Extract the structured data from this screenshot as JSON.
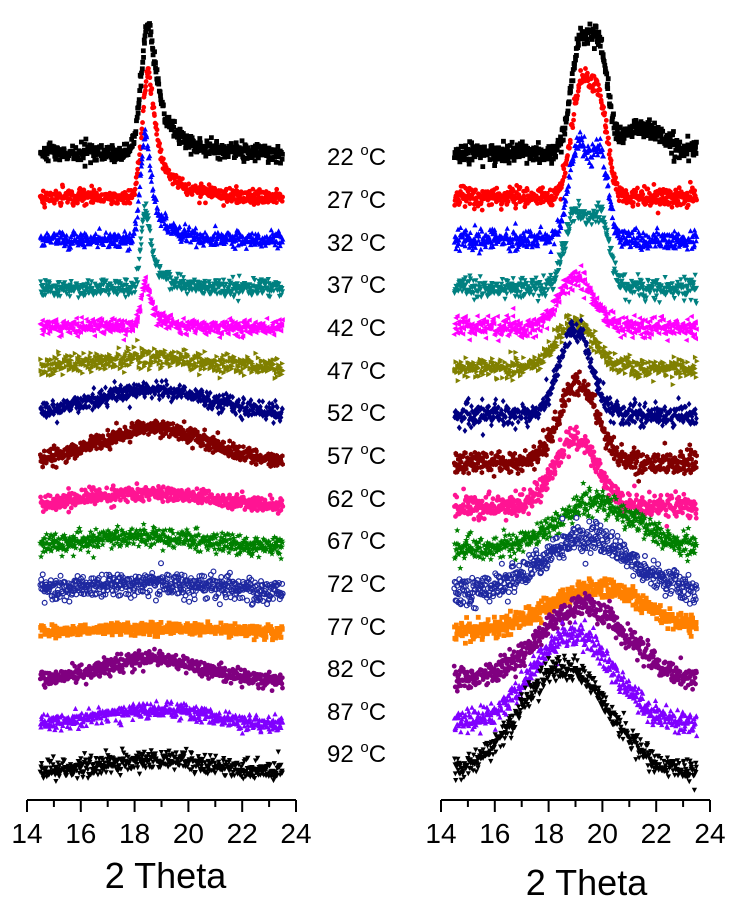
{
  "chart_data": [
    {
      "type": "scatter",
      "panel": "left",
      "xlabel": "2 Theta",
      "xlim": [
        14,
        24
      ],
      "xticks": [
        "14",
        "16",
        "18",
        "20",
        "22",
        "24"
      ],
      "temperatures": [
        "22",
        "27",
        "32",
        "37",
        "42",
        "47",
        "52",
        "57",
        "62",
        "67",
        "72",
        "77",
        "82",
        "87",
        "92"
      ],
      "temp_unit": "°C",
      "series": [
        {
          "name": "22 °C",
          "color": "#000000",
          "marker": "square",
          "x_range": [
            14.5,
            23.5
          ],
          "baseline_y": 153,
          "noise": 4,
          "peaks": [
            {
              "center": 18.5,
              "height": 130,
              "width": 0.7,
              "shape": "sharp_tail"
            }
          ]
        },
        {
          "name": "27 °C",
          "color": "#ff0000",
          "marker": "circle",
          "x_range": [
            14.5,
            23.5
          ],
          "baseline_y": 197,
          "noise": 4,
          "peaks": [
            {
              "center": 18.5,
              "height": 125,
              "width": 0.6,
              "shape": "sharp_tail"
            }
          ]
        },
        {
          "name": "32 °C",
          "color": "#0000ff",
          "marker": "triangle",
          "x_range": [
            14.5,
            23.5
          ],
          "baseline_y": 240,
          "noise": 4,
          "peaks": [
            {
              "center": 18.4,
              "height": 105,
              "width": 0.5,
              "shape": "sharp_tail"
            }
          ]
        },
        {
          "name": "37 °C",
          "color": "#008080",
          "marker": "triangle-down",
          "x_range": [
            14.5,
            23.5
          ],
          "baseline_y": 288,
          "noise": 4,
          "peaks": [
            {
              "center": 18.4,
              "height": 80,
              "width": 0.45,
              "shape": "sharp_tail"
            }
          ]
        },
        {
          "name": "42 °C",
          "color": "#ff00ff",
          "marker": "triangle-left",
          "x_range": [
            14.5,
            23.5
          ],
          "baseline_y": 327,
          "noise": 4,
          "peaks": [
            {
              "center": 18.4,
              "height": 45,
              "width": 0.45,
              "shape": "sharp_tail"
            }
          ]
        },
        {
          "name": "47 °C",
          "color": "#808000",
          "marker": "triangle-right",
          "x_range": [
            14.5,
            23.5
          ],
          "baseline_y": 368,
          "noise": 5,
          "peaks": [
            {
              "center": 18.5,
              "height": 10,
              "width": 2.0,
              "shape": "broad"
            }
          ]
        },
        {
          "name": "52 °C",
          "color": "#000080",
          "marker": "diamond",
          "x_range": [
            14.5,
            23.5
          ],
          "baseline_y": 415,
          "noise": 4,
          "peaks": [
            {
              "center": 18.6,
              "height": 25,
              "width": 2.2,
              "shape": "broad"
            }
          ]
        },
        {
          "name": "57 °C",
          "color": "#800000",
          "marker": "hexagon",
          "x_range": [
            14.5,
            23.5
          ],
          "baseline_y": 463,
          "noise": 4,
          "peaks": [
            {
              "center": 18.7,
              "height": 35,
              "width": 2.0,
              "shape": "broad"
            }
          ]
        },
        {
          "name": "62 °C",
          "color": "#ff1493",
          "marker": "circle",
          "x_range": [
            14.5,
            23.5
          ],
          "baseline_y": 508,
          "noise": 4,
          "peaks": [
            {
              "center": 18.6,
              "height": 15,
              "width": 2.5,
              "shape": "broad"
            }
          ]
        },
        {
          "name": "67 °C",
          "color": "#008000",
          "marker": "star",
          "x_range": [
            14.5,
            23.5
          ],
          "baseline_y": 549,
          "noise": 5,
          "peaks": [
            {
              "center": 18.5,
              "height": 12,
              "width": 2.5,
              "shape": "broad"
            }
          ]
        },
        {
          "name": "72 °C",
          "color": "#1e28a0",
          "marker": "circle-open",
          "x_range": [
            14.5,
            23.5
          ],
          "baseline_y": 592,
          "noise": 6,
          "peaks": [
            {
              "center": 18.5,
              "height": 8,
              "width": 2.5,
              "shape": "broad"
            }
          ]
        },
        {
          "name": "77 °C",
          "color": "#ff8000",
          "marker": "square",
          "x_range": [
            14.5,
            23.5
          ],
          "baseline_y": 633,
          "noise": 3,
          "peaks": [
            {
              "center": 18.7,
              "height": 5,
              "width": 2.5,
              "shape": "broad"
            }
          ]
        },
        {
          "name": "82 °C",
          "color": "#800080",
          "marker": "circle",
          "x_range": [
            14.5,
            23.5
          ],
          "baseline_y": 681,
          "noise": 4,
          "peaks": [
            {
              "center": 18.6,
              "height": 22,
              "width": 1.8,
              "shape": "broad"
            }
          ]
        },
        {
          "name": "87 °C",
          "color": "#8000ff",
          "marker": "triangle",
          "x_range": [
            14.5,
            23.5
          ],
          "baseline_y": 725,
          "noise": 4,
          "peaks": [
            {
              "center": 18.7,
              "height": 15,
              "width": 2.0,
              "shape": "broad"
            }
          ]
        },
        {
          "name": "92 °C",
          "color": "#000000",
          "marker": "triangle-down",
          "x_range": [
            14.5,
            23.5
          ],
          "baseline_y": 772,
          "noise": 5,
          "peaks": [
            {
              "center": 18.7,
              "height": 12,
              "width": 2.0,
              "shape": "broad"
            }
          ]
        }
      ]
    },
    {
      "type": "scatter",
      "panel": "right",
      "xlabel": "2 Theta",
      "xlim": [
        14,
        24
      ],
      "xticks": [
        "14",
        "16",
        "18",
        "20",
        "22",
        "24"
      ],
      "series": [
        {
          "name": "22 °C",
          "color": "#000000",
          "marker": "square",
          "x_range": [
            14.5,
            23.5
          ],
          "baseline_y": 153,
          "noise": 5,
          "peaks": [
            {
              "center": 19.2,
              "height": 110,
              "width": 0.35
            },
            {
              "center": 19.9,
              "height": 95,
              "width": 0.3
            },
            {
              "center": 21.5,
              "height": 25,
              "width": 0.8
            }
          ]
        },
        {
          "name": "27 °C",
          "color": "#ff0000",
          "marker": "circle",
          "x_range": [
            14.5,
            23.5
          ],
          "baseline_y": 197,
          "noise": 5,
          "peaks": [
            {
              "center": 19.2,
              "height": 110,
              "width": 0.35
            },
            {
              "center": 19.9,
              "height": 90,
              "width": 0.3
            }
          ]
        },
        {
          "name": "32 °C",
          "color": "#0000ff",
          "marker": "triangle",
          "x_range": [
            14.5,
            23.5
          ],
          "baseline_y": 240,
          "noise": 5,
          "peaks": [
            {
              "center": 19.1,
              "height": 95,
              "width": 0.35
            },
            {
              "center": 19.9,
              "height": 85,
              "width": 0.3
            }
          ]
        },
        {
          "name": "37 °C",
          "color": "#008080",
          "marker": "triangle-down",
          "x_range": [
            14.5,
            23.5
          ],
          "baseline_y": 288,
          "noise": 5,
          "peaks": [
            {
              "center": 19.0,
              "height": 75,
              "width": 0.4
            },
            {
              "center": 19.9,
              "height": 70,
              "width": 0.35
            }
          ]
        },
        {
          "name": "42 °C",
          "color": "#ff00ff",
          "marker": "triangle-left",
          "x_range": [
            14.5,
            23.5
          ],
          "baseline_y": 327,
          "noise": 5,
          "peaks": [
            {
              "center": 19.0,
              "height": 50,
              "width": 0.6
            }
          ]
        },
        {
          "name": "47 °C",
          "color": "#808000",
          "marker": "triangle-right",
          "x_range": [
            14.5,
            23.5
          ],
          "baseline_y": 368,
          "noise": 5,
          "peaks": [
            {
              "center": 19.0,
              "height": 45,
              "width": 0.7
            }
          ]
        },
        {
          "name": "52 °C",
          "color": "#000080",
          "marker": "diamond",
          "x_range": [
            14.5,
            23.5
          ],
          "baseline_y": 415,
          "noise": 6,
          "peaks": [
            {
              "center": 19.0,
              "height": 85,
              "width": 0.6
            }
          ]
        },
        {
          "name": "57 °C",
          "color": "#800000",
          "marker": "hexagon",
          "x_range": [
            14.5,
            23.5
          ],
          "baseline_y": 463,
          "noise": 6,
          "peaks": [
            {
              "center": 19.1,
              "height": 80,
              "width": 0.7
            }
          ]
        },
        {
          "name": "62 °C",
          "color": "#ff1493",
          "marker": "circle",
          "x_range": [
            14.5,
            23.5
          ],
          "baseline_y": 508,
          "noise": 6,
          "peaks": [
            {
              "center": 19.0,
              "height": 70,
              "width": 0.8
            }
          ]
        },
        {
          "name": "67 °C",
          "color": "#008000",
          "marker": "star",
          "x_range": [
            14.5,
            23.5
          ],
          "baseline_y": 549,
          "noise": 6,
          "peaks": [
            {
              "center": 19.8,
              "height": 45,
              "width": 1.5
            }
          ]
        },
        {
          "name": "72 °C",
          "color": "#1e28a0",
          "marker": "circle-open",
          "x_range": [
            14.5,
            23.5
          ],
          "baseline_y": 592,
          "noise": 7,
          "peaks": [
            {
              "center": 19.4,
              "height": 55,
              "width": 1.6
            }
          ]
        },
        {
          "name": "77 °C",
          "color": "#ff8000",
          "marker": "square",
          "x_range": [
            14.5,
            23.5
          ],
          "baseline_y": 633,
          "noise": 5,
          "peaks": [
            {
              "center": 19.8,
              "height": 45,
              "width": 1.8
            }
          ]
        },
        {
          "name": "82 °C",
          "color": "#800080",
          "marker": "circle",
          "x_range": [
            14.5,
            23.5
          ],
          "baseline_y": 681,
          "noise": 6,
          "peaks": [
            {
              "center": 19.3,
              "height": 75,
              "width": 1.6
            }
          ]
        },
        {
          "name": "87 °C",
          "color": "#8000ff",
          "marker": "triangle",
          "x_range": [
            14.5,
            23.5
          ],
          "baseline_y": 725,
          "noise": 6,
          "peaks": [
            {
              "center": 18.9,
              "height": 90,
              "width": 1.5
            }
          ]
        },
        {
          "name": "92 °C",
          "color": "#000000",
          "marker": "triangle-down",
          "x_range": [
            14.5,
            23.5
          ],
          "baseline_y": 772,
          "noise": 6,
          "peaks": [
            {
              "center": 18.6,
              "height": 105,
              "width": 1.6
            }
          ]
        }
      ]
    }
  ]
}
